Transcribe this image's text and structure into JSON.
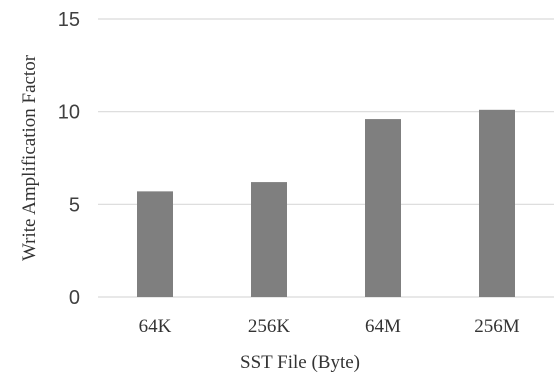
{
  "colors": {
    "bar": "#7f7f7f",
    "gridline": "#d9d9d9",
    "tick_text": "#404040",
    "label_text": "#333333",
    "background": "#ffffff"
  },
  "chart_data": {
    "type": "bar",
    "categories": [
      "64K",
      "256K",
      "64M",
      "256M"
    ],
    "values": [
      5.7,
      6.2,
      9.6,
      10.1
    ],
    "xlabel": "SST File (Byte)",
    "ylabel": "Write Amplification Factor",
    "ylim": [
      0,
      15
    ],
    "yticks": [
      0,
      5,
      10,
      15
    ],
    "grid": true,
    "legend": "none"
  }
}
